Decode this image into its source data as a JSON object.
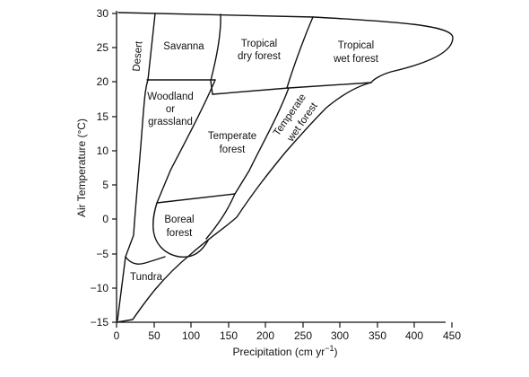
{
  "axes": {
    "x_title": "Precipitation (cm yr",
    "x_title_sup": "−1",
    "x_title_end": ")",
    "y_title": "Air Temperature (°C)",
    "x_range": [
      0,
      450
    ],
    "y_range": [
      -15,
      30
    ],
    "x_ticks": [
      "0",
      "50",
      "100",
      "150",
      "200",
      "250",
      "300",
      "350",
      "400",
      "450"
    ],
    "y_ticks": [
      "30",
      "25",
      "20",
      "15",
      "10",
      "5",
      "0",
      "−5",
      "−10",
      "−15"
    ]
  },
  "biomes": {
    "desert": "Desert",
    "savanna": "Savanna",
    "tropical_dry_1": "Tropical",
    "tropical_dry_2": "dry forest",
    "tropical_wet_1": "Tropical",
    "tropical_wet_2": "wet forest",
    "woodland_1": "Woodland",
    "woodland_2": "or",
    "woodland_3": "grassland",
    "temperate_1": "Temperate",
    "temperate_2": "forest",
    "temperate_wet_1": "Temperate",
    "temperate_wet_2": "wet forest",
    "boreal_1": "Boreal",
    "boreal_2": "forest",
    "tundra": "Tundra"
  },
  "colors": {
    "line": "#111111",
    "background": "#ffffff"
  }
}
